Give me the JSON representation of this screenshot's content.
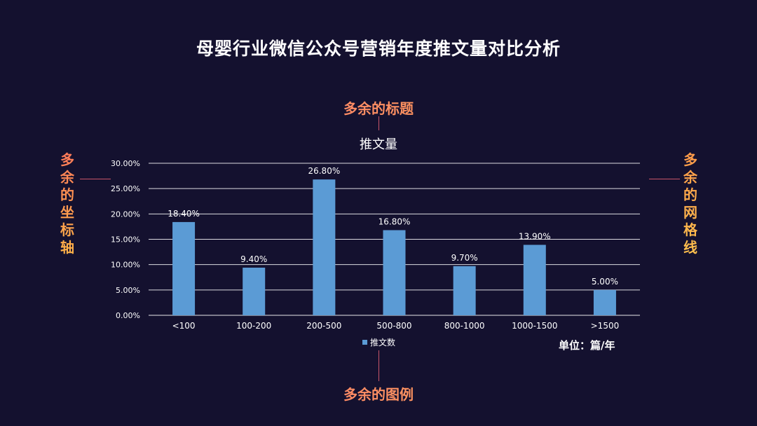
{
  "page": {
    "title": "母婴行业微信公众号营销年度推文量对比分析",
    "unit_note": "单位：篇/年"
  },
  "callouts": {
    "title": "多余的标题",
    "axis": "多余的坐标轴",
    "gridlines": "多余的网格线",
    "legend": "多余的图例"
  },
  "colors": {
    "background": "#14112f",
    "bar": "#5b9bd5",
    "gridline": "#ffffff",
    "callout_gradient_start": "#ff6b7e",
    "callout_gradient_end": "#ffb347"
  },
  "chart_data": {
    "type": "bar",
    "title": "推文量",
    "categories": [
      "<100",
      "100-200",
      "200-500",
      "500-800",
      "800-1000",
      "1000-1500",
      ">1500"
    ],
    "series": [
      {
        "name": "推文数",
        "values": [
          18.4,
          9.4,
          26.8,
          16.8,
          9.7,
          13.9,
          5.0
        ],
        "labels": [
          "18.40%",
          "9.40%",
          "26.80%",
          "16.80%",
          "9.70%",
          "13.90%",
          "5.00%"
        ]
      }
    ],
    "yticks": [
      "0.00%",
      "5.00%",
      "10.00%",
      "15.00%",
      "20.00%",
      "25.00%",
      "30.00%"
    ],
    "ylim": [
      0,
      30
    ],
    "grid": true,
    "legend_position": "bottom"
  }
}
